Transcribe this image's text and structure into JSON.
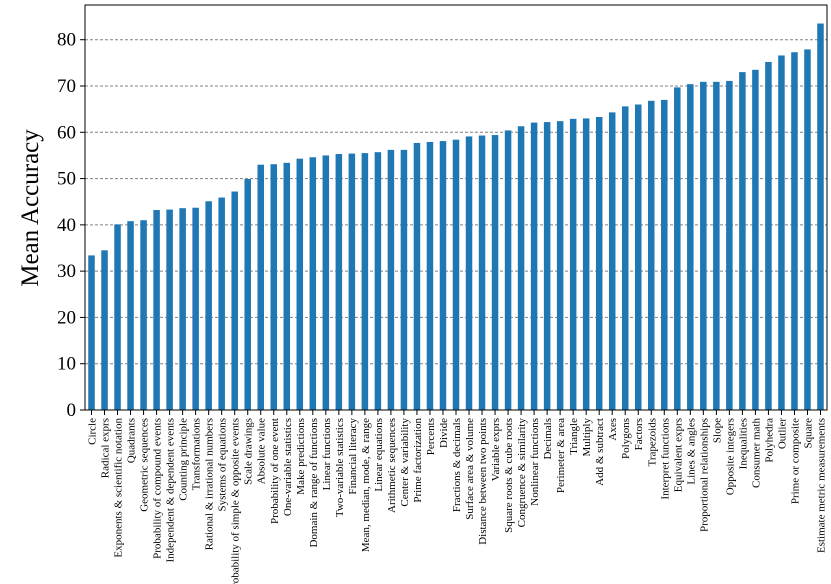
{
  "chart_data": {
    "type": "bar",
    "title": "",
    "xlabel": "",
    "ylabel": "Mean Accuracy",
    "ylim": [
      0,
      87.5
    ],
    "yticks": [
      0,
      10,
      20,
      30,
      40,
      50,
      60,
      70,
      80
    ],
    "grid": "y-dashed",
    "bar_color": "#1f77b4",
    "categories": [
      "Circle",
      "Radical exprs",
      "Exponents & scientific notation",
      "Quadrants",
      "Geometric sequences",
      "Probability of compound events",
      "Independent & dependent events",
      "Counting principle",
      "Transformations",
      "Rational & irrational numbers",
      "Systems of equations",
      "Probability of simple & opposite events",
      "Scale drawings",
      "Absolute value",
      "Probability of one event",
      "One-variable statistics",
      "Make predictions",
      "Domain & range of functions",
      "Linear functions",
      "Two-variable statistics",
      "Financial literacy",
      "Mean, median, mode, & range",
      "Linear equations",
      "Arithmetic sequences",
      "Center & variability",
      "Prime factorization",
      "Percents",
      "Divide",
      "Fractions & decimals",
      "Surface area & volume",
      "Distance between two points",
      "Variable exprs",
      "Square roots & cube roots",
      "Congruence & similarity",
      "Nonlinear functions",
      "Decimals",
      "Perimeter & area",
      "Triangle",
      "Multiply",
      "Add & subtract",
      "Axes",
      "Polygons",
      "Factors",
      "Trapezoids",
      "Interpret functions",
      "Equivalent exprs",
      "Lines & angles",
      "Proportional relationships",
      "Slope",
      "Opposite integers",
      "Inequalities",
      "Consumer math",
      "Polyhedra",
      "Outlier",
      "Prime or composite",
      "Square",
      "Estimate metric measurements"
    ],
    "values": [
      33.4,
      34.5,
      40.1,
      40.8,
      41.0,
      43.2,
      43.3,
      43.6,
      43.7,
      45.1,
      45.9,
      47.2,
      49.9,
      53.0,
      53.1,
      53.4,
      54.3,
      54.6,
      55.0,
      55.3,
      55.4,
      55.5,
      55.7,
      56.2,
      56.2,
      57.7,
      57.9,
      58.1,
      58.4,
      59.1,
      59.3,
      59.4,
      60.4,
      61.3,
      62.1,
      62.2,
      62.4,
      62.9,
      63.0,
      63.3,
      64.3,
      65.6,
      66.0,
      66.8,
      67.0,
      69.7,
      70.4,
      70.9,
      70.9,
      71.1,
      73.0,
      73.5,
      75.2,
      76.6,
      77.3,
      77.9,
      83.5
    ]
  }
}
